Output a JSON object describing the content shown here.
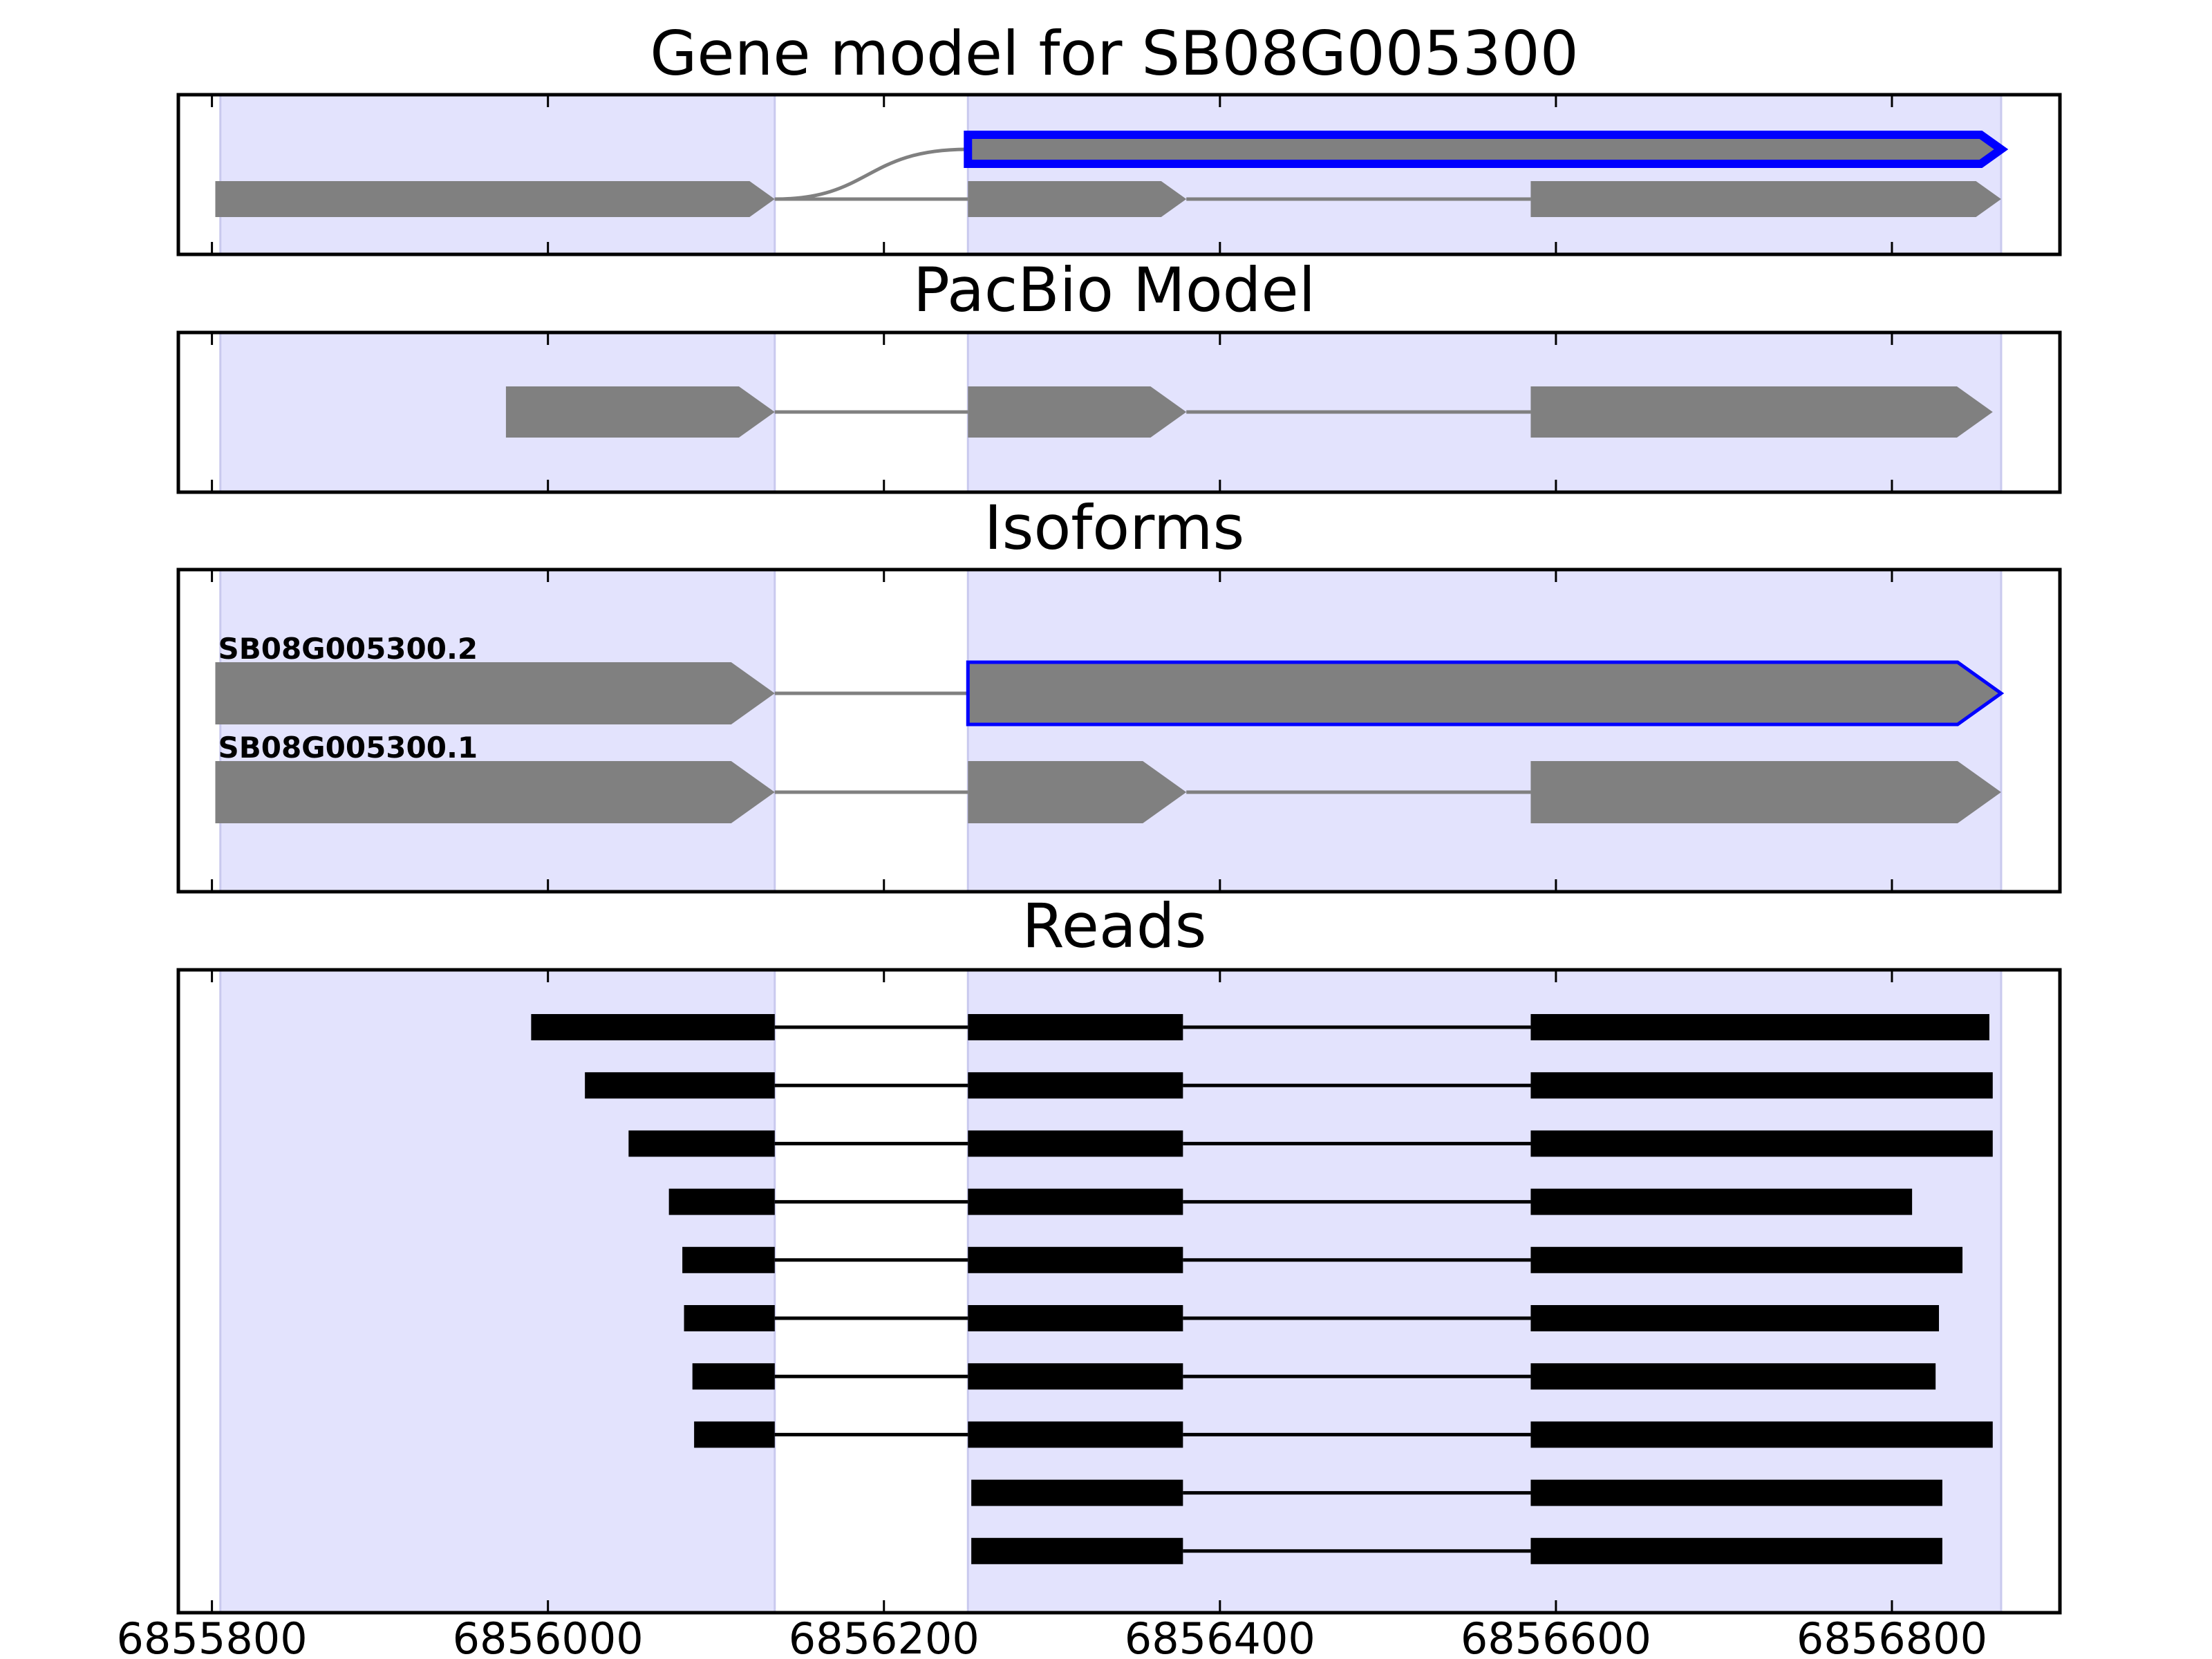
{
  "chart_data": {
    "type": "gene-structure",
    "xlim": [
      6855780,
      6856900
    ],
    "x_ticks": [
      6855800,
      6856000,
      6856200,
      6856400,
      6856600,
      6856800
    ],
    "tick_labels": [
      "6855800",
      "6856000",
      "6856200",
      "6856400",
      "6856600",
      "6856800"
    ],
    "highlight_regions": [
      [
        6855805,
        6856135
      ],
      [
        6856250,
        6856865
      ]
    ],
    "highlight_color": "#e3e3fd",
    "colors": {
      "exon": "#808080",
      "selected_outline": "#0000ff",
      "read": "#000000",
      "intron": "#808080"
    },
    "panels": [
      {
        "id": "gene-model",
        "title": "Gene model for SB08G005300",
        "tracks": [
          {
            "exons": [
              [
                6856250,
                6856865
              ]
            ],
            "selected": true
          },
          {
            "exons": [
              [
                6855802,
                6856135
              ],
              [
                6856250,
                6856380
              ],
              [
                6856585,
                6856865
              ]
            ]
          }
        ]
      },
      {
        "id": "pacbio-model",
        "title": "PacBio Model",
        "tracks": [
          {
            "exons": [
              [
                6855975,
                6856135
              ],
              [
                6856250,
                6856380
              ],
              [
                6856585,
                6856860
              ]
            ]
          }
        ]
      },
      {
        "id": "isoforms",
        "title": "Isoforms",
        "tracks": [
          {
            "name": "SB08G005300.2",
            "exons": [
              [
                6855802,
                6856135
              ],
              [
                6856250,
                6856865
              ]
            ],
            "selected_exon": 1
          },
          {
            "name": "SB08G005300.1",
            "exons": [
              [
                6855802,
                6856135
              ],
              [
                6856250,
                6856380
              ],
              [
                6856585,
                6856865
              ]
            ]
          }
        ]
      },
      {
        "id": "reads",
        "title": "Reads",
        "reads": [
          [
            [
              6855990,
              6856135
            ],
            [
              6856250,
              6856378
            ],
            [
              6856585,
              6856858
            ]
          ],
          [
            [
              6856022,
              6856135
            ],
            [
              6856250,
              6856378
            ],
            [
              6856585,
              6856860
            ]
          ],
          [
            [
              6856048,
              6856135
            ],
            [
              6856250,
              6856378
            ],
            [
              6856585,
              6856860
            ]
          ],
          [
            [
              6856072,
              6856135
            ],
            [
              6856250,
              6856378
            ],
            [
              6856585,
              6856812
            ]
          ],
          [
            [
              6856080,
              6856135
            ],
            [
              6856250,
              6856378
            ],
            [
              6856585,
              6856842
            ]
          ],
          [
            [
              6856081,
              6856135
            ],
            [
              6856250,
              6856378
            ],
            [
              6856585,
              6856828
            ]
          ],
          [
            [
              6856086,
              6856135
            ],
            [
              6856250,
              6856378
            ],
            [
              6856585,
              6856826
            ]
          ],
          [
            [
              6856087,
              6856135
            ],
            [
              6856250,
              6856378
            ],
            [
              6856585,
              6856860
            ]
          ],
          [
            [
              6856252,
              6856378
            ],
            [
              6856585,
              6856830
            ]
          ],
          [
            [
              6856252,
              6856378
            ],
            [
              6856585,
              6856830
            ]
          ]
        ]
      }
    ]
  }
}
